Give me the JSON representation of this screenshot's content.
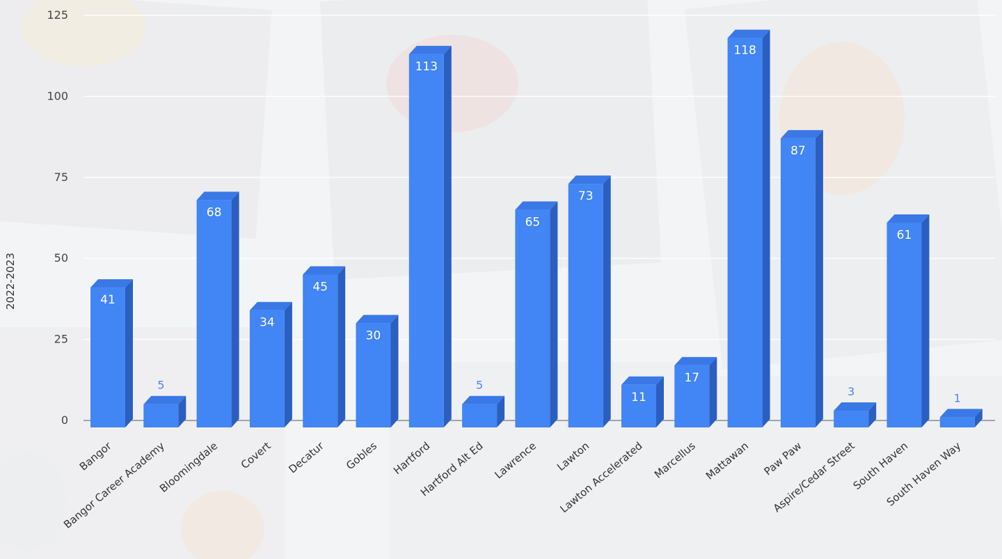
{
  "chart_data": {
    "type": "bar",
    "ylabel": "2022-2023",
    "xlabel": "",
    "ylim": [
      0,
      125
    ],
    "yticks": [
      0,
      25,
      50,
      75,
      100,
      125
    ],
    "grid": true,
    "legend": "none",
    "style": "3d-column",
    "colors": {
      "front": "#4285f4",
      "side": "#2b5fbf",
      "top": "#3a78e6",
      "label_inside": "#ffffff",
      "label_outside": "#4a86f0"
    },
    "categories": [
      "Bangor",
      "Bangor Career Academy",
      "Bloomingdale",
      "Covert",
      "Decatur",
      "Gobles",
      "Hartford",
      "Hartford Alt Ed",
      "Lawrence",
      "Lawton",
      "Lawton Accelerated",
      "Marcellus",
      "Mattawan",
      "Paw Paw",
      "Aspire/Cedar Street",
      "South Haven",
      "South Haven Way"
    ],
    "values": [
      41,
      5,
      68,
      34,
      45,
      30,
      113,
      5,
      65,
      73,
      11,
      17,
      118,
      87,
      3,
      61,
      1
    ]
  }
}
